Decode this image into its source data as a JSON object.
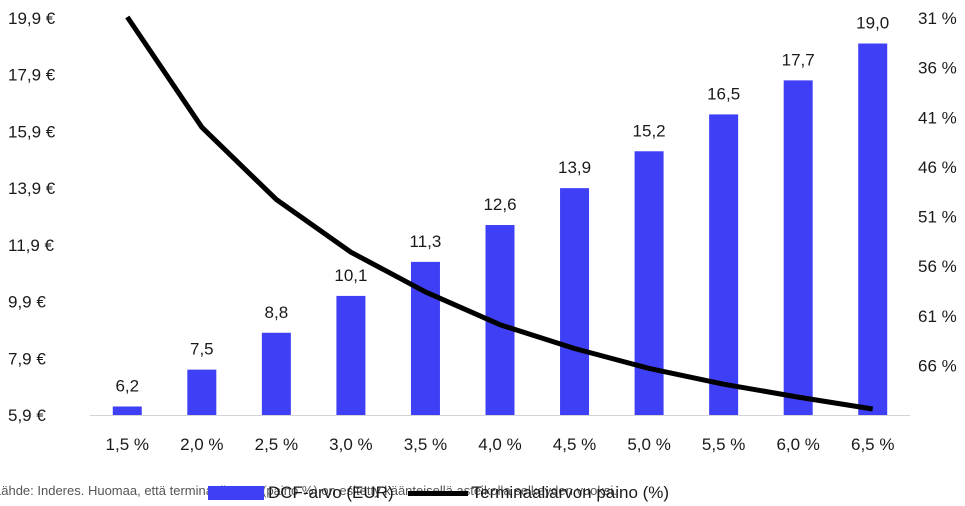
{
  "chart_data": {
    "type": "bar",
    "categories": [
      "1,5 %",
      "2,0 %",
      "2,5 %",
      "3,0 %",
      "3,5 %",
      "4,0 %",
      "4,5 %",
      "5,0 %",
      "5,5 %",
      "6,0 %",
      "6,5 %"
    ],
    "series": [
      {
        "name": "DCF-arvo (EUR)",
        "type": "bar",
        "axis": "left",
        "values": [
          6.2,
          7.5,
          8.8,
          10.1,
          11.3,
          12.6,
          13.9,
          15.2,
          16.5,
          17.7,
          19.0
        ],
        "labels": [
          "6,2",
          "7,5",
          "8,8",
          "10,1",
          "11,3",
          "12,6",
          "13,9",
          "15,2",
          "16,5",
          "17,7",
          "19,0"
        ],
        "color": "#3f3ff5"
      },
      {
        "name": "Terminaaliarvon paino (%)",
        "type": "line",
        "axis": "right",
        "values": [
          30.9,
          42.0,
          49.3,
          54.6,
          58.6,
          61.9,
          64.3,
          66.3,
          67.9,
          69.2,
          70.4
        ],
        "color": "#000000"
      }
    ],
    "y_left": {
      "ticks": [
        "19,9 €",
        "17,9 €",
        "15,9 €",
        "13,9 €",
        "11,9 €",
        "9,9 €",
        "7,9 €",
        "5,9 €"
      ],
      "ylim": [
        5.9,
        19.9
      ]
    },
    "y_right": {
      "ticks": [
        "31 %",
        "36 %",
        "41 %",
        "46 %",
        "51 %",
        "56 %",
        "61 %",
        "66 %"
      ],
      "ylim": [
        31,
        71
      ],
      "inverted": true
    },
    "legend": "bottom",
    "grid": false
  },
  "source_note": "Lähde: Inderes. Huomaa, että terminaaliarvon (paino %) on esitetty käänteisellä asteikolla selkeyden vuoksi."
}
